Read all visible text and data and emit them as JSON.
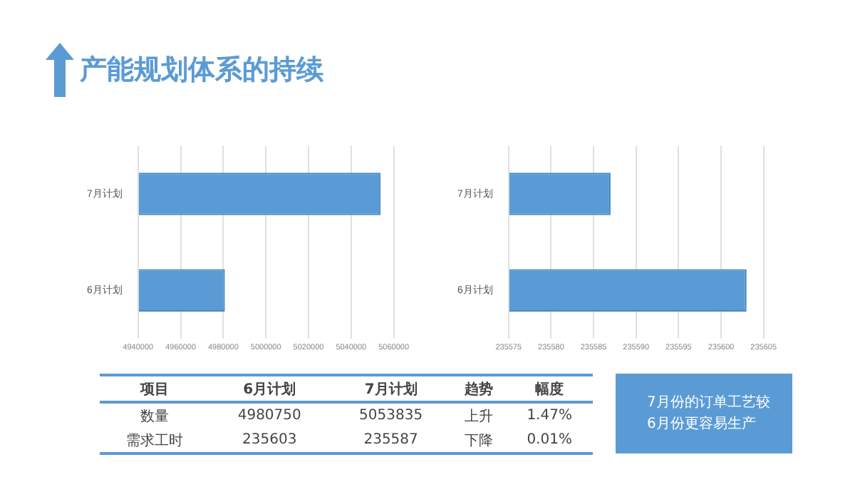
{
  "chart_data": [
    {
      "type": "bar",
      "title": "产能规划体系的持续",
      "orientation": "horizontal",
      "categories": [
        "7月计划",
        "6月计划"
      ],
      "values": [
        5053835,
        4980750
      ],
      "color": "#5b9bd5",
      "xlim": [
        4940000,
        5060000
      ],
      "xticks": [
        4940000,
        4960000,
        4980000,
        5000000,
        5020000,
        5040000,
        5060000
      ],
      "grid": "x"
    },
    {
      "type": "bar",
      "orientation": "horizontal",
      "categories": [
        "7月计划",
        "6月计划"
      ],
      "values": [
        235587,
        235603
      ],
      "color": "#5b9bd5",
      "xlim": [
        235575,
        235605
      ],
      "xticks": [
        235575,
        235580,
        235585,
        235590,
        235595,
        235600,
        235605
      ],
      "grid": "x"
    },
    {
      "type": "other",
      "annotations": [
        "项目",
        "6月计划",
        "7月计划",
        "趋势",
        "幅度",
        "数量",
        "4980750",
        "5053835",
        "上升",
        "1.47%",
        "需求工时",
        "235603",
        "235587",
        "下降",
        "0.01%"
      ]
    },
    {
      "type": "other",
      "annotations": [
        "7月份的订单工艺较",
        "6月份更容易生产"
      ]
    }
  ]
}
